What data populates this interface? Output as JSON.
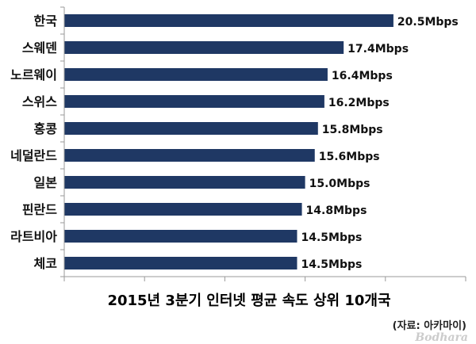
{
  "chart_data": {
    "type": "bar",
    "orientation": "horizontal",
    "categories": [
      "한국",
      "스웨덴",
      "노르웨이",
      "스위스",
      "홍콩",
      "네덜란드",
      "일본",
      "핀란드",
      "라트비아",
      "체코"
    ],
    "values": [
      20.5,
      17.4,
      16.4,
      16.2,
      15.8,
      15.6,
      15.0,
      14.8,
      14.5,
      14.5
    ],
    "value_labels": [
      "20.5Mbps",
      "17.4Mbps",
      "16.4Mbps",
      "16.2Mbps",
      "15.8Mbps",
      "15.6Mbps",
      "15.0Mbps",
      "14.8Mbps",
      "14.5Mbps",
      "14.5Mbps"
    ],
    "title": "2015년 3분기 인터넷 평균 속도 상위 10개국",
    "xlabel": "",
    "ylabel": "",
    "xlim": [
      0,
      25
    ],
    "bar_color": "#1f3864",
    "grid": false
  },
  "source": "(자료: 아카마이)",
  "watermark": "Bodhara"
}
